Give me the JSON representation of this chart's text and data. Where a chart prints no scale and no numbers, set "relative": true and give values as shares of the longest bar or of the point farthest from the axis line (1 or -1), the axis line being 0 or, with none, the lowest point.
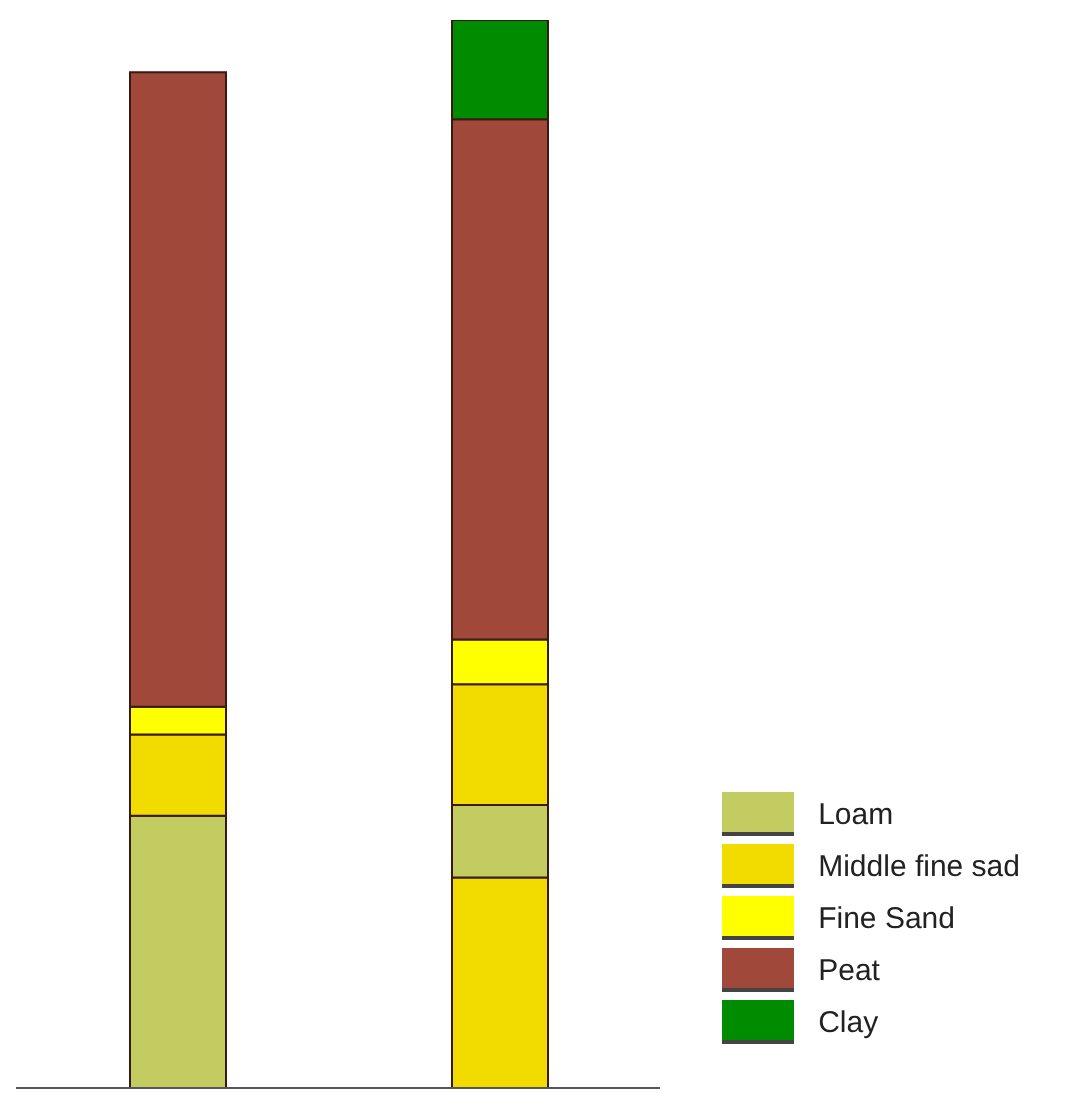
{
  "chart_data": {
    "type": "bar",
    "stacked": true,
    "relative": true,
    "categories": [
      null,
      null
    ],
    "legend": "bottom right",
    "series": [
      {
        "color": "#f2dc00",
        "values": [
          0,
          0.197
        ]
      },
      {
        "name": "Loam",
        "color": "#c2cc60",
        "values": [
          0.255,
          0.068
        ]
      },
      {
        "name": "Middle fine sad",
        "color": "#f2dc00",
        "values": [
          0.076,
          0.113
        ]
      },
      {
        "name": "Fine Sand",
        "color": "#ffff00",
        "values": [
          0.026,
          0.042
        ]
      },
      {
        "name": "Peat",
        "color": "#a0493a",
        "values": [
          0.594,
          0.487
        ]
      },
      {
        "name": "Clay",
        "color": "#008c00",
        "values": [
          0,
          0.093
        ]
      }
    ]
  }
}
